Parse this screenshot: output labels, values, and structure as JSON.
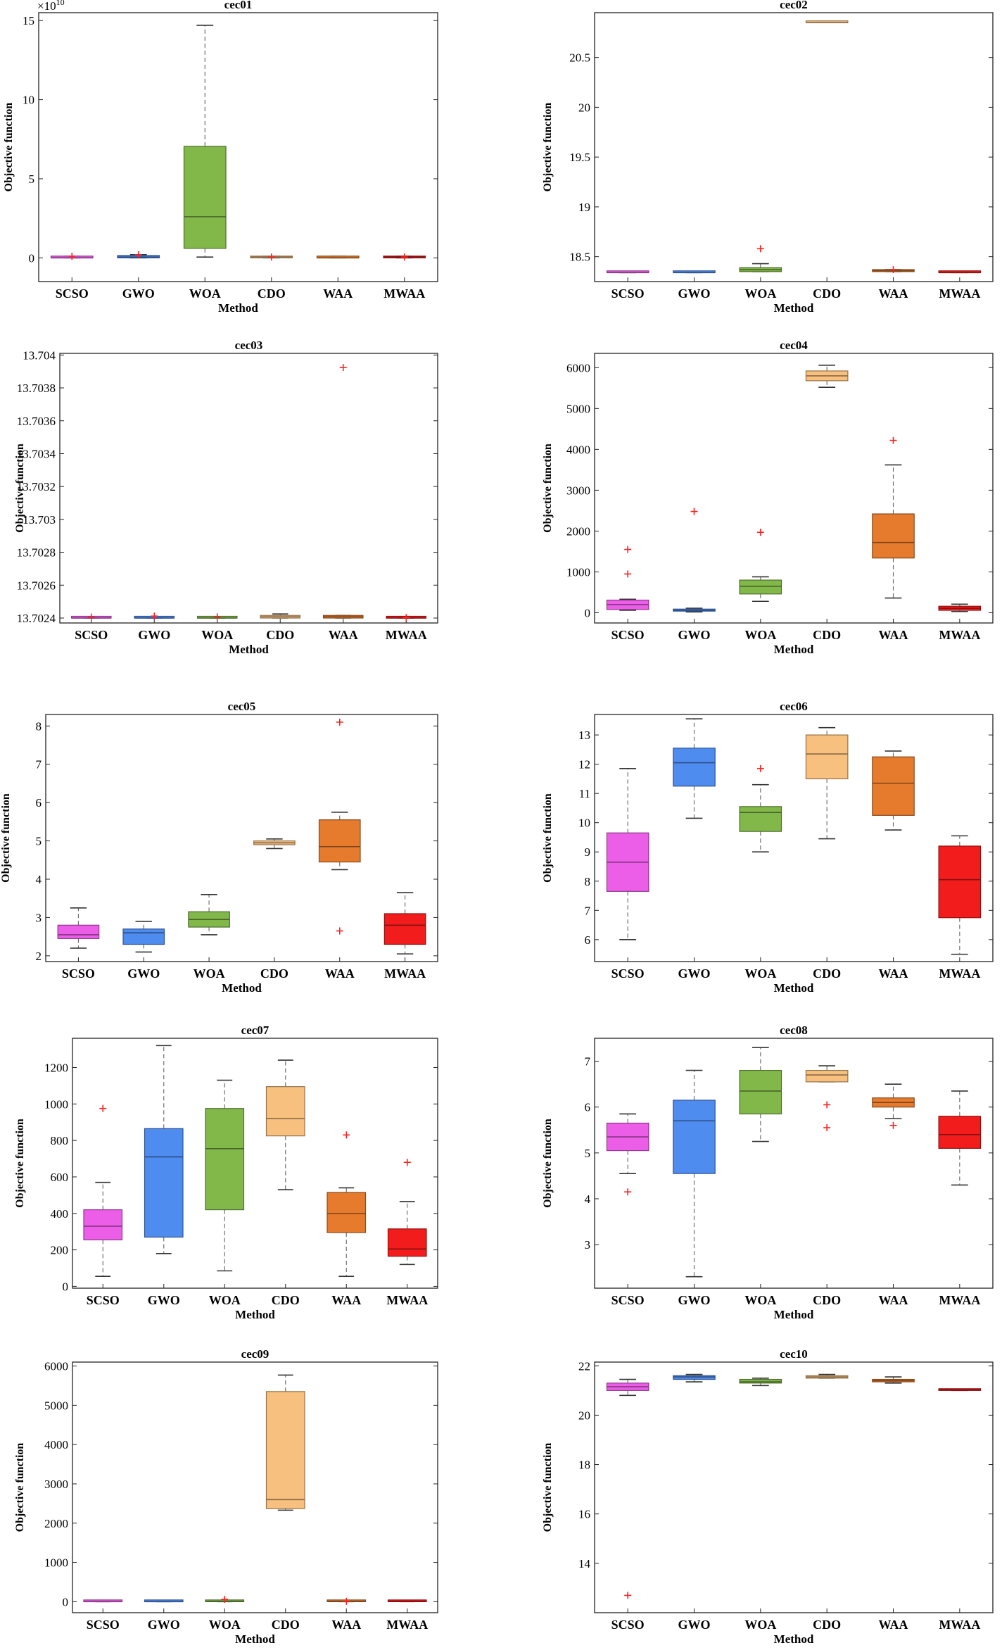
{
  "colors": {
    "SCSO": "#ec5ee8",
    "GWO": "#4f8cf0",
    "WOA": "#82b84a",
    "CDO": "#f8c07f",
    "WAA": "#e67b2d",
    "MWAA": "#f21c1c",
    "outlier": "#ff2020",
    "whisker": "#555555"
  },
  "chart_data": [
    {
      "type": "box",
      "title": "cec01",
      "xlabel": "Method",
      "ylabel": "Objective function",
      "categories": [
        "SCSO",
        "GWO",
        "WOA",
        "CDO",
        "WAA",
        "MWAA"
      ],
      "ylim": [
        -1.5,
        15.5
      ],
      "yticks": [
        0,
        5,
        10,
        15
      ],
      "ytick_labels": [
        "0",
        "5",
        "10",
        "15"
      ],
      "multiplier": "×10",
      "multiplier_exp": "10",
      "boxes": [
        {
          "min": 0,
          "q1": 0,
          "median": 0,
          "q3": 0.1,
          "max": 0.1,
          "outliers": [
            0.1
          ]
        },
        {
          "min": 0,
          "q1": 0,
          "median": 0.05,
          "q3": 0.15,
          "max": 0.2,
          "outliers": [
            0.2
          ]
        },
        {
          "min": 0.05,
          "q1": 0.6,
          "median": 2.6,
          "q3": 7.05,
          "max": 14.7,
          "outliers": []
        },
        {
          "min": 0,
          "q1": 0,
          "median": 0.05,
          "q3": 0.1,
          "max": 0.1,
          "outliers": [
            0.05
          ]
        },
        {
          "min": 0,
          "q1": 0,
          "median": 0,
          "q3": 0.1,
          "max": 0.1,
          "outliers": []
        },
        {
          "min": 0,
          "q1": 0,
          "median": 0.05,
          "q3": 0.1,
          "max": 0.1,
          "outliers": [
            0.05
          ]
        }
      ]
    },
    {
      "type": "box",
      "title": "cec02",
      "xlabel": "Method",
      "ylabel": "Objective function",
      "categories": [
        "SCSO",
        "GWO",
        "WOA",
        "CDO",
        "WAA",
        "MWAA"
      ],
      "ylim": [
        18.25,
        20.95
      ],
      "yticks": [
        18.5,
        19,
        19.5,
        20,
        20.5
      ],
      "ytick_labels": [
        "18.5",
        "19",
        "19.5",
        "20",
        "20.5"
      ],
      "boxes": [
        {
          "min": 18.34,
          "q1": 18.34,
          "median": 18.34,
          "q3": 18.35,
          "max": 18.35,
          "outliers": []
        },
        {
          "min": 18.34,
          "q1": 18.34,
          "median": 18.34,
          "q3": 18.35,
          "max": 18.35,
          "outliers": []
        },
        {
          "min": 18.35,
          "q1": 18.35,
          "median": 18.37,
          "q3": 18.39,
          "max": 18.43,
          "outliers": [
            18.58
          ]
        },
        {
          "min": 20.85,
          "q1": 20.85,
          "median": 20.85,
          "q3": 20.86,
          "max": 20.86,
          "outliers": []
        },
        {
          "min": 18.35,
          "q1": 18.35,
          "median": 18.36,
          "q3": 18.37,
          "max": 18.37,
          "outliers": [
            18.37
          ]
        },
        {
          "min": 18.34,
          "q1": 18.34,
          "median": 18.34,
          "q3": 18.35,
          "max": 18.35,
          "outliers": []
        }
      ]
    },
    {
      "type": "box",
      "title": "cec03",
      "xlabel": "Method",
      "ylabel": "Objective function",
      "categories": [
        "SCSO",
        "GWO",
        "WOA",
        "CDO",
        "WAA",
        "MWAA"
      ],
      "ylim": [
        13.70237,
        13.70401
      ],
      "yticks": [
        13.7024,
        13.7026,
        13.7028,
        13.703,
        13.7032,
        13.7034,
        13.7036,
        13.7038,
        13.704
      ],
      "ytick_labels": [
        "13.7024",
        "13.7026",
        "13.7028",
        "13.703",
        "13.7032",
        "13.7034",
        "13.7036",
        "13.7038",
        "13.704"
      ],
      "boxes": [
        {
          "min": 13.7024,
          "q1": 13.7024,
          "median": 13.7024,
          "q3": 13.702405,
          "max": 13.702405,
          "outliers": [
            13.702406
          ]
        },
        {
          "min": 13.7024,
          "q1": 13.7024,
          "median": 13.7024,
          "q3": 13.702405,
          "max": 13.702405,
          "outliers": [
            13.702412
          ]
        },
        {
          "min": 13.7024,
          "q1": 13.7024,
          "median": 13.7024,
          "q3": 13.702405,
          "max": 13.702405,
          "outliers": [
            13.702407
          ]
        },
        {
          "min": 13.7024,
          "q1": 13.7024,
          "median": 13.702408,
          "q3": 13.702416,
          "max": 13.702425,
          "outliers": []
        },
        {
          "min": 13.7024,
          "q1": 13.7024,
          "median": 13.702408,
          "q3": 13.702416,
          "max": 13.702416,
          "outliers": [
            13.703924
          ]
        },
        {
          "min": 13.7024,
          "q1": 13.7024,
          "median": 13.7024,
          "q3": 13.702404,
          "max": 13.702404,
          "outliers": [
            13.702403
          ]
        }
      ]
    },
    {
      "type": "box",
      "title": "cec04",
      "xlabel": "Method",
      "ylabel": "Objective function",
      "categories": [
        "SCSO",
        "GWO",
        "WOA",
        "CDO",
        "WAA",
        "MWAA"
      ],
      "ylim": [
        -250,
        6350
      ],
      "yticks": [
        0,
        1000,
        2000,
        3000,
        4000,
        5000,
        6000
      ],
      "ytick_labels": [
        "0",
        "1000",
        "2000",
        "3000",
        "4000",
        "5000",
        "6000"
      ],
      "boxes": [
        {
          "min": 60,
          "q1": 80,
          "median": 200,
          "q3": 310,
          "max": 330,
          "outliers": [
            1550,
            950
          ]
        },
        {
          "min": 20,
          "q1": 40,
          "median": 60,
          "q3": 90,
          "max": 110,
          "outliers": [
            2480
          ]
        },
        {
          "min": 280,
          "q1": 460,
          "median": 650,
          "q3": 800,
          "max": 880,
          "outliers": [
            1970
          ]
        },
        {
          "min": 5520,
          "q1": 5680,
          "median": 5800,
          "q3": 5920,
          "max": 6060,
          "outliers": []
        },
        {
          "min": 360,
          "q1": 1340,
          "median": 1720,
          "q3": 2420,
          "max": 3620,
          "outliers": [
            4220
          ]
        },
        {
          "min": 30,
          "q1": 60,
          "median": 110,
          "q3": 160,
          "max": 210,
          "outliers": []
        }
      ]
    },
    {
      "type": "box",
      "title": "cec05",
      "xlabel": "Method",
      "ylabel": "Objective function",
      "categories": [
        "SCSO",
        "GWO",
        "WOA",
        "CDO",
        "WAA",
        "MWAA"
      ],
      "ylim": [
        1.85,
        8.3
      ],
      "yticks": [
        2,
        3,
        4,
        5,
        6,
        7,
        8
      ],
      "ytick_labels": [
        "2",
        "3",
        "4",
        "5",
        "6",
        "7",
        "8"
      ],
      "boxes": [
        {
          "min": 2.2,
          "q1": 2.45,
          "median": 2.55,
          "q3": 2.8,
          "max": 3.25,
          "outliers": []
        },
        {
          "min": 2.1,
          "q1": 2.3,
          "median": 2.6,
          "q3": 2.7,
          "max": 2.9,
          "outliers": []
        },
        {
          "min": 2.55,
          "q1": 2.75,
          "median": 2.95,
          "q3": 3.15,
          "max": 3.6,
          "outliers": []
        },
        {
          "min": 4.8,
          "q1": 4.9,
          "median": 4.95,
          "q3": 5.0,
          "max": 5.05,
          "outliers": []
        },
        {
          "min": 4.25,
          "q1": 4.45,
          "median": 4.85,
          "q3": 5.55,
          "max": 5.75,
          "outliers": [
            8.1,
            2.65
          ]
        },
        {
          "min": 2.05,
          "q1": 2.3,
          "median": 2.8,
          "q3": 3.1,
          "max": 3.65,
          "outliers": []
        }
      ]
    },
    {
      "type": "box",
      "title": "cec06",
      "xlabel": "Method",
      "ylabel": "Objective function",
      "categories": [
        "SCSO",
        "GWO",
        "WOA",
        "CDO",
        "WAA",
        "MWAA"
      ],
      "ylim": [
        5.25,
        13.7
      ],
      "yticks": [
        6,
        7,
        8,
        9,
        10,
        11,
        12,
        13
      ],
      "ytick_labels": [
        "6",
        "7",
        "8",
        "9",
        "10",
        "11",
        "12",
        "13"
      ],
      "boxes": [
        {
          "min": 6.0,
          "q1": 7.65,
          "median": 8.65,
          "q3": 9.65,
          "max": 11.85,
          "outliers": []
        },
        {
          "min": 10.15,
          "q1": 11.25,
          "median": 12.05,
          "q3": 12.55,
          "max": 13.55,
          "outliers": []
        },
        {
          "min": 9.0,
          "q1": 9.7,
          "median": 10.35,
          "q3": 10.55,
          "max": 11.3,
          "outliers": [
            11.85
          ]
        },
        {
          "min": 9.45,
          "q1": 11.5,
          "median": 12.35,
          "q3": 13.0,
          "max": 13.25,
          "outliers": []
        },
        {
          "min": 9.75,
          "q1": 10.25,
          "median": 11.35,
          "q3": 12.25,
          "max": 12.45,
          "outliers": []
        },
        {
          "min": 5.5,
          "q1": 6.75,
          "median": 8.05,
          "q3": 9.2,
          "max": 9.55,
          "outliers": []
        }
      ]
    },
    {
      "type": "box",
      "title": "cec07",
      "xlabel": "Method",
      "ylabel": "Objective function",
      "categories": [
        "SCSO",
        "GWO",
        "WOA",
        "CDO",
        "WAA",
        "MWAA"
      ],
      "ylim": [
        -10,
        1360
      ],
      "yticks": [
        0,
        200,
        400,
        600,
        800,
        1000,
        1200
      ],
      "ytick_labels": [
        "0",
        "200",
        "400",
        "600",
        "800",
        "1000",
        "1200"
      ],
      "boxes": [
        {
          "min": 55,
          "q1": 255,
          "median": 330,
          "q3": 420,
          "max": 570,
          "outliers": [
            975
          ]
        },
        {
          "min": 180,
          "q1": 270,
          "median": 710,
          "q3": 865,
          "max": 1320,
          "outliers": []
        },
        {
          "min": 85,
          "q1": 420,
          "median": 755,
          "q3": 975,
          "max": 1130,
          "outliers": []
        },
        {
          "min": 530,
          "q1": 825,
          "median": 920,
          "q3": 1095,
          "max": 1240,
          "outliers": []
        },
        {
          "min": 55,
          "q1": 295,
          "median": 400,
          "q3": 515,
          "max": 540,
          "outliers": [
            830
          ]
        },
        {
          "min": 120,
          "q1": 165,
          "median": 205,
          "q3": 315,
          "max": 465,
          "outliers": [
            680
          ]
        }
      ]
    },
    {
      "type": "box",
      "title": "cec08",
      "xlabel": "Method",
      "ylabel": "Objective function",
      "categories": [
        "SCSO",
        "GWO",
        "WOA",
        "CDO",
        "WAA",
        "MWAA"
      ],
      "ylim": [
        2.05,
        7.5
      ],
      "yticks": [
        3,
        4,
        5,
        6,
        7
      ],
      "ytick_labels": [
        "3",
        "4",
        "5",
        "6",
        "7"
      ],
      "boxes": [
        {
          "min": 4.55,
          "q1": 5.05,
          "median": 5.35,
          "q3": 5.65,
          "max": 5.85,
          "outliers": [
            4.15
          ]
        },
        {
          "min": 2.3,
          "q1": 4.55,
          "median": 5.7,
          "q3": 6.15,
          "max": 6.8,
          "outliers": []
        },
        {
          "min": 5.25,
          "q1": 5.85,
          "median": 6.35,
          "q3": 6.8,
          "max": 7.3,
          "outliers": []
        },
        {
          "min": 6.55,
          "q1": 6.55,
          "median": 6.7,
          "q3": 6.8,
          "max": 6.9,
          "outliers": [
            6.05,
            5.55
          ]
        },
        {
          "min": 5.75,
          "q1": 6.0,
          "median": 6.1,
          "q3": 6.2,
          "max": 6.5,
          "outliers": [
            5.6
          ]
        },
        {
          "min": 4.3,
          "q1": 5.1,
          "median": 5.4,
          "q3": 5.8,
          "max": 6.35,
          "outliers": []
        }
      ]
    },
    {
      "type": "box",
      "title": "cec09",
      "xlabel": "Method",
      "ylabel": "Objective function",
      "categories": [
        "SCSO",
        "GWO",
        "WOA",
        "CDO",
        "WAA",
        "MWAA"
      ],
      "ylim": [
        -280,
        6100
      ],
      "yticks": [
        0,
        1000,
        2000,
        3000,
        4000,
        5000,
        6000
      ],
      "ytick_labels": [
        "0",
        "1000",
        "2000",
        "3000",
        "4000",
        "5000",
        "6000"
      ],
      "boxes": [
        {
          "min": 0,
          "q1": 0,
          "median": 0,
          "q3": 10,
          "max": 10,
          "outliers": []
        },
        {
          "min": 0,
          "q1": 0,
          "median": 0,
          "q3": 10,
          "max": 10,
          "outliers": []
        },
        {
          "min": 0,
          "q1": 0,
          "median": 10,
          "q3": 20,
          "max": 20,
          "outliers": [
            60
          ]
        },
        {
          "min": 2330,
          "q1": 2370,
          "median": 2600,
          "q3": 5350,
          "max": 5770,
          "outliers": []
        },
        {
          "min": 0,
          "q1": 0,
          "median": 10,
          "q3": 20,
          "max": 20,
          "outliers": [
            10
          ]
        },
        {
          "min": 0,
          "q1": 0,
          "median": 5,
          "q3": 15,
          "max": 15,
          "outliers": []
        }
      ]
    },
    {
      "type": "box",
      "title": "cec10",
      "xlabel": "Method",
      "ylabel": "Objective function",
      "categories": [
        "SCSO",
        "GWO",
        "WOA",
        "CDO",
        "WAA",
        "MWAA"
      ],
      "ylim": [
        12.0,
        22.15
      ],
      "yticks": [
        14,
        16,
        18,
        20,
        22
      ],
      "ytick_labels": [
        "14",
        "16",
        "18",
        "20",
        "22"
      ],
      "boxes": [
        {
          "min": 20.8,
          "q1": 21.0,
          "median": 21.15,
          "q3": 21.3,
          "max": 21.45,
          "outliers": [
            12.7
          ]
        },
        {
          "min": 21.35,
          "q1": 21.45,
          "median": 21.55,
          "q3": 21.6,
          "max": 21.65,
          "outliers": []
        },
        {
          "min": 21.2,
          "q1": 21.3,
          "median": 21.35,
          "q3": 21.45,
          "max": 21.5,
          "outliers": []
        },
        {
          "min": 21.5,
          "q1": 21.5,
          "median": 21.55,
          "q3": 21.6,
          "max": 21.65,
          "outliers": []
        },
        {
          "min": 21.3,
          "q1": 21.35,
          "median": 21.4,
          "q3": 21.45,
          "max": 21.55,
          "outliers": []
        },
        {
          "min": 21.0,
          "q1": 21.0,
          "median": 21.05,
          "q3": 21.05,
          "max": 21.05,
          "outliers": []
        }
      ]
    }
  ]
}
